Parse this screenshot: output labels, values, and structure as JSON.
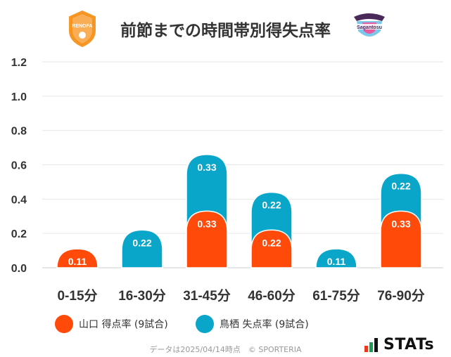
{
  "header": {
    "title": "前節までの時間帯別得失点率",
    "left_logo_text": "RENOFA",
    "right_logo_text": "Sagantosu"
  },
  "chart_data": {
    "type": "bar",
    "categories": [
      "0-15分",
      "16-30分",
      "31-45分",
      "46-60分",
      "61-75分",
      "76-90分"
    ],
    "series": [
      {
        "name": "山口 得点率 (9試合)",
        "values": [
          0.11,
          0.0,
          0.33,
          0.22,
          0.0,
          0.33
        ],
        "color": "#ff4a0a"
      },
      {
        "name": "鳥栖 失点率 (9試合)",
        "values": [
          0.0,
          0.22,
          0.33,
          0.22,
          0.11,
          0.22
        ],
        "color": "#0aa6c9"
      }
    ],
    "yticks": [
      "0.0",
      "0.2",
      "0.4",
      "0.6",
      "0.8",
      "1.0",
      "1.2"
    ],
    "ylim": [
      0,
      1.2
    ],
    "stacked": true,
    "grid": true,
    "legend": "bottom"
  },
  "footer": {
    "note": "データは2025/04/14時点　© SPORTERIA",
    "brand": "STATs"
  }
}
